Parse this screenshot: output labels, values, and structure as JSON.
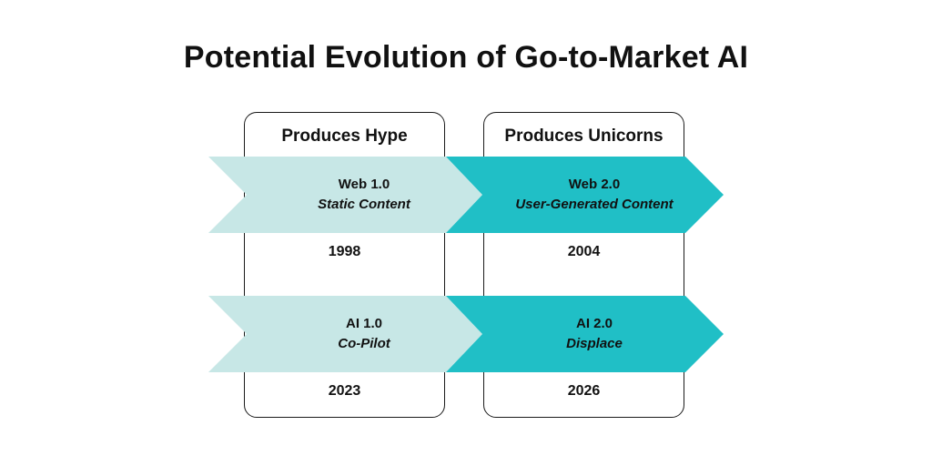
{
  "title": "Potential Evolution of Go-to-Market AI",
  "columns": [
    {
      "header": "Produces Hype"
    },
    {
      "header": "Produces Unicorns"
    }
  ],
  "rows": [
    {
      "left": {
        "name": "Web 1.0",
        "desc": "Static Content",
        "year": "1998"
      },
      "right": {
        "name": "Web 2.0",
        "desc": "User-Generated Content",
        "year": "2004"
      }
    },
    {
      "left": {
        "name": "AI 1.0",
        "desc": "Co-Pilot",
        "year": "2023"
      },
      "right": {
        "name": "AI 2.0",
        "desc": "Displace",
        "year": "2026"
      }
    }
  ],
  "colors": {
    "light_arrow": "#c7e7e6",
    "dark_arrow": "#20bfc6",
    "border": "#1a1a1a"
  }
}
